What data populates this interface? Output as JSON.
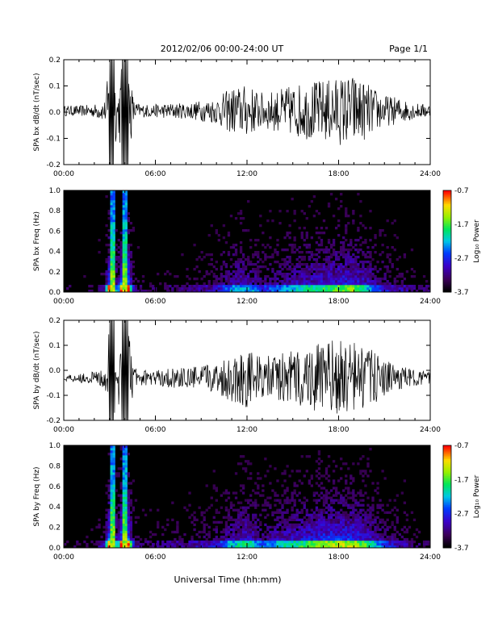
{
  "header": {
    "title": "2012/02/06  00:00-24:00 UT",
    "page": "Page 1/1"
  },
  "xaxis": {
    "ticks": [
      "00:00",
      "06:00",
      "12:00",
      "18:00",
      "24:00"
    ],
    "label": "Universal Time (hh:mm)",
    "range_hours": [
      0,
      24
    ]
  },
  "chart_data": [
    {
      "type": "line",
      "ylabel": "SPA bx dB/dt (nT/sec)",
      "ylim": [
        -0.2,
        0.2
      ],
      "yticks": [
        "-0.2",
        "-0.1",
        "0.0",
        "0.1",
        "0.2"
      ],
      "xlim": [
        0,
        24
      ],
      "series": [
        {
          "color": "#000000",
          "envelope_x_hours": [
            0,
            1,
            2,
            2.7,
            3.0,
            3.3,
            3.5,
            3.8,
            4.2,
            4.6,
            5,
            6,
            7,
            8,
            9,
            10,
            11,
            12,
            13,
            14,
            15,
            16,
            17,
            18,
            19,
            20,
            21,
            22,
            23,
            24
          ],
          "envelope_amplitude": [
            0.02,
            0.02,
            0.025,
            0.04,
            0.2,
            0.2,
            0.05,
            0.2,
            0.2,
            0.04,
            0.025,
            0.025,
            0.03,
            0.03,
            0.04,
            0.05,
            0.09,
            0.1,
            0.07,
            0.08,
            0.1,
            0.11,
            0.12,
            0.13,
            0.14,
            0.1,
            0.06,
            0.05,
            0.03,
            0.025
          ],
          "baseline": 0.005
        }
      ]
    },
    {
      "type": "heatmap",
      "ylabel": "SPA bx Freq (Hz)",
      "ylim": [
        0.0,
        1.0
      ],
      "yticks": [
        "0.0",
        "0.2",
        "0.4",
        "0.6",
        "0.8",
        "1.0"
      ],
      "xlim": [
        0,
        24
      ],
      "colorbar": {
        "label": "Log₁₀ Power",
        "range": [
          -3.7,
          -0.7
        ],
        "ticks": [
          "-0.7",
          "-1.7",
          "-2.7",
          "-3.7"
        ]
      }
    },
    {
      "type": "line",
      "ylabel": "SPA by dB/dt (nT/sec)",
      "ylim": [
        -0.2,
        0.2
      ],
      "yticks": [
        "-0.2",
        "-0.1",
        "0.0",
        "0.1",
        "0.2"
      ],
      "xlim": [
        0,
        24
      ],
      "series": [
        {
          "color": "#000000",
          "envelope_x_hours": [
            0,
            1,
            2,
            2.7,
            3.0,
            3.3,
            3.5,
            3.8,
            4.2,
            4.6,
            5,
            6,
            7,
            8,
            9,
            10,
            11,
            12,
            13,
            14,
            15,
            16,
            17,
            18,
            19,
            20,
            21,
            22,
            23,
            24
          ],
          "envelope_amplitude": [
            0.015,
            0.02,
            0.025,
            0.05,
            0.2,
            0.2,
            0.06,
            0.2,
            0.2,
            0.05,
            0.03,
            0.03,
            0.04,
            0.04,
            0.05,
            0.06,
            0.1,
            0.12,
            0.08,
            0.1,
            0.11,
            0.13,
            0.15,
            0.15,
            0.15,
            0.12,
            0.07,
            0.05,
            0.03,
            0.025
          ],
          "baseline": -0.03
        }
      ]
    },
    {
      "type": "heatmap",
      "ylabel": "SPA by Freq (Hz)",
      "ylim": [
        0.0,
        1.0
      ],
      "yticks": [
        "0.0",
        "0.2",
        "0.4",
        "0.6",
        "0.8",
        "1.0"
      ],
      "xlim": [
        0,
        24
      ],
      "colorbar": {
        "label": "Log₁₀ Power",
        "range": [
          -3.7,
          -0.7
        ],
        "ticks": [
          "-0.7",
          "-1.7",
          "-2.7",
          "-3.7"
        ]
      }
    }
  ]
}
